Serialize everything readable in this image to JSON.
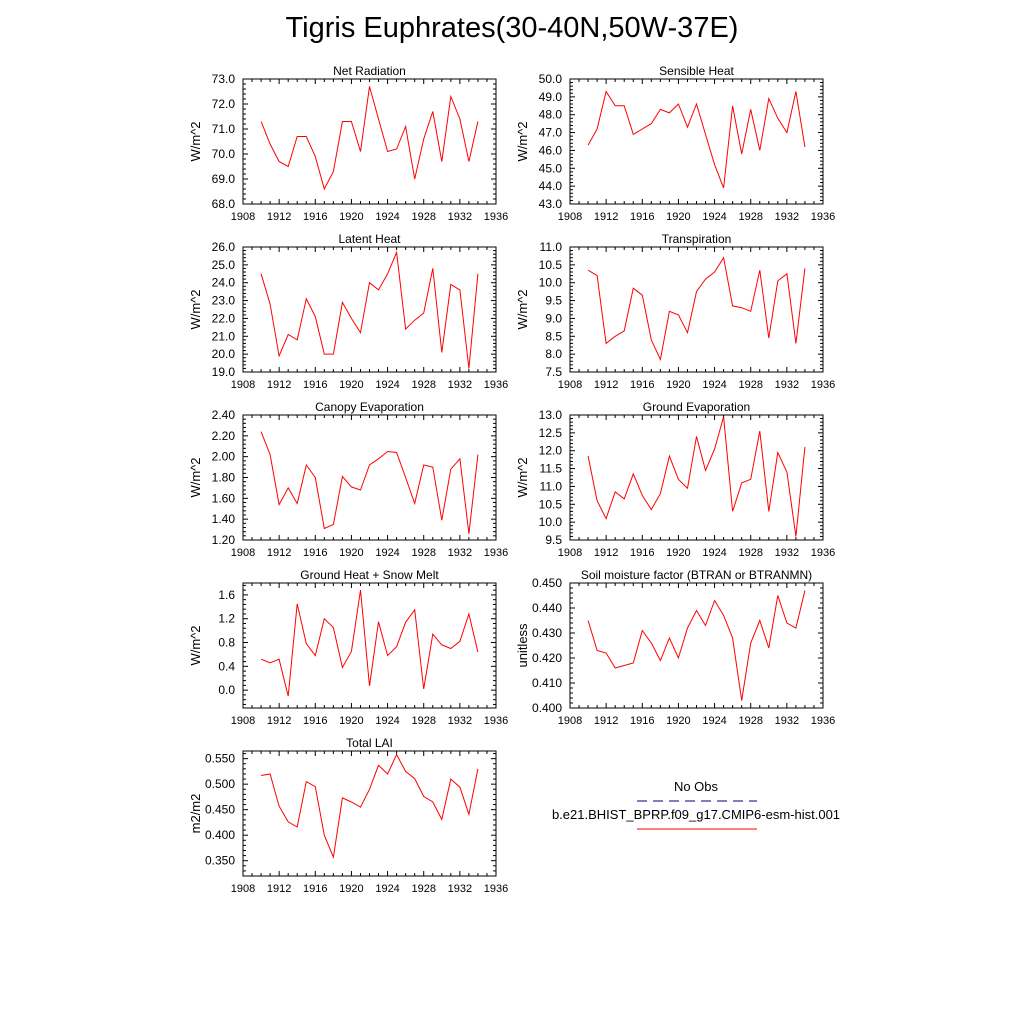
{
  "title": "Tigris Euphrates(30-40N,50W-37E)",
  "colors": {
    "model": "#ff0000",
    "obs": "#000080",
    "axis": "#000000"
  },
  "legend": {
    "obs_label": "No Obs",
    "model_label": "b.e21.BHIST_BPRP.f09_g17.CMIP6-esm-hist.001"
  },
  "chart_data": [
    {
      "type": "line",
      "title": "Net Radiation",
      "ylabel": "W/m^2",
      "xlim": [
        1908,
        1936
      ],
      "ylim": [
        68.0,
        73.0
      ],
      "xticks": [
        "1908",
        "1912",
        "1916",
        "1920",
        "1924",
        "1928",
        "1932",
        "1936"
      ],
      "yticks": [
        "68.0",
        "69.0",
        "70.0",
        "71.0",
        "72.0",
        "73.0"
      ],
      "x": [
        1910,
        1911,
        1912,
        1913,
        1914,
        1915,
        1916,
        1917,
        1918,
        1919,
        1920,
        1921,
        1922,
        1923,
        1924,
        1925,
        1926,
        1927,
        1928,
        1929,
        1930,
        1931,
        1932,
        1933,
        1934
      ],
      "values": [
        71.3,
        70.4,
        69.7,
        69.5,
        70.7,
        70.7,
        69.9,
        68.6,
        69.3,
        71.3,
        71.3,
        70.1,
        72.7,
        71.4,
        70.1,
        70.2,
        71.1,
        69.0,
        70.6,
        71.7,
        69.7,
        72.3,
        71.4,
        69.7,
        71.3
      ]
    },
    {
      "type": "line",
      "title": "Sensible Heat",
      "ylabel": "W/m^2",
      "xlim": [
        1908,
        1936
      ],
      "ylim": [
        43.0,
        50.0
      ],
      "xticks": [
        "1908",
        "1912",
        "1916",
        "1920",
        "1924",
        "1928",
        "1932",
        "1936"
      ],
      "yticks": [
        "43.0",
        "44.0",
        "45.0",
        "46.0",
        "47.0",
        "48.0",
        "49.0",
        "50.0"
      ],
      "x": [
        1910,
        1911,
        1912,
        1913,
        1914,
        1915,
        1916,
        1917,
        1918,
        1919,
        1920,
        1921,
        1922,
        1923,
        1924,
        1925,
        1926,
        1927,
        1928,
        1929,
        1930,
        1931,
        1932,
        1933,
        1934
      ],
      "values": [
        46.3,
        47.2,
        49.3,
        48.5,
        48.5,
        46.9,
        47.2,
        47.5,
        48.3,
        48.1,
        48.6,
        47.3,
        48.6,
        46.9,
        45.2,
        43.9,
        48.5,
        45.8,
        48.3,
        46.0,
        48.9,
        47.8,
        47.0,
        49.3,
        46.2
      ]
    },
    {
      "type": "line",
      "title": "Latent Heat",
      "ylabel": "W/m^2",
      "xlim": [
        1908,
        1936
      ],
      "ylim": [
        19.0,
        26.0
      ],
      "xticks": [
        "1908",
        "1912",
        "1916",
        "1920",
        "1924",
        "1928",
        "1932",
        "1936"
      ],
      "yticks": [
        "19.0",
        "20.0",
        "21.0",
        "22.0",
        "23.0",
        "24.0",
        "25.0",
        "26.0"
      ],
      "x": [
        1910,
        1911,
        1912,
        1913,
        1914,
        1915,
        1916,
        1917,
        1918,
        1919,
        1920,
        1921,
        1922,
        1923,
        1924,
        1925,
        1926,
        1927,
        1928,
        1929,
        1930,
        1931,
        1932,
        1933,
        1934
      ],
      "values": [
        24.5,
        22.8,
        19.9,
        21.1,
        20.8,
        23.1,
        22.1,
        20.0,
        20.0,
        22.9,
        22.0,
        21.2,
        24.0,
        23.6,
        24.5,
        25.7,
        21.4,
        21.9,
        22.3,
        24.8,
        20.1,
        23.9,
        23.6,
        19.2,
        24.5
      ]
    },
    {
      "type": "line",
      "title": "Transpiration",
      "ylabel": "W/m^2",
      "xlim": [
        1908,
        1936
      ],
      "ylim": [
        7.5,
        11.0
      ],
      "xticks": [
        "1908",
        "1912",
        "1916",
        "1920",
        "1924",
        "1928",
        "1932",
        "1936"
      ],
      "yticks": [
        "7.5",
        "8.0",
        "8.5",
        "9.0",
        "9.5",
        "10.0",
        "10.5",
        "11.0"
      ],
      "x": [
        1910,
        1911,
        1912,
        1913,
        1914,
        1915,
        1916,
        1917,
        1918,
        1919,
        1920,
        1921,
        1922,
        1923,
        1924,
        1925,
        1926,
        1927,
        1928,
        1929,
        1930,
        1931,
        1932,
        1933,
        1934
      ],
      "values": [
        10.35,
        10.2,
        8.3,
        8.5,
        8.65,
        9.85,
        9.65,
        8.4,
        7.85,
        9.2,
        9.1,
        8.6,
        9.75,
        10.1,
        10.3,
        10.7,
        9.35,
        9.3,
        9.2,
        10.35,
        8.45,
        10.05,
        10.25,
        8.3,
        10.4
      ]
    },
    {
      "type": "line",
      "title": "Canopy Evaporation",
      "ylabel": "W/m^2",
      "xlim": [
        1908,
        1936
      ],
      "ylim": [
        1.2,
        2.4
      ],
      "xticks": [
        "1908",
        "1912",
        "1916",
        "1920",
        "1924",
        "1928",
        "1932",
        "1936"
      ],
      "yticks": [
        "1.20",
        "1.40",
        "1.60",
        "1.80",
        "2.00",
        "2.20",
        "2.40"
      ],
      "x": [
        1910,
        1911,
        1912,
        1913,
        1914,
        1915,
        1916,
        1917,
        1918,
        1919,
        1920,
        1921,
        1922,
        1923,
        1924,
        1925,
        1926,
        1927,
        1928,
        1929,
        1930,
        1931,
        1932,
        1933,
        1934
      ],
      "values": [
        2.24,
        2.02,
        1.54,
        1.7,
        1.55,
        1.92,
        1.8,
        1.31,
        1.35,
        1.81,
        1.71,
        1.68,
        1.92,
        1.98,
        2.05,
        2.04,
        1.8,
        1.55,
        1.92,
        1.9,
        1.39,
        1.88,
        1.98,
        1.26,
        2.02
      ]
    },
    {
      "type": "line",
      "title": "Ground Evaporation",
      "ylabel": "W/m^2",
      "xlim": [
        1908,
        1936
      ],
      "ylim": [
        9.5,
        13.0
      ],
      "xticks": [
        "1908",
        "1912",
        "1916",
        "1920",
        "1924",
        "1928",
        "1932",
        "1936"
      ],
      "yticks": [
        "9.5",
        "10.0",
        "10.5",
        "11.0",
        "11.5",
        "12.0",
        "12.5",
        "13.0"
      ],
      "x": [
        1910,
        1911,
        1912,
        1913,
        1914,
        1915,
        1916,
        1917,
        1918,
        1919,
        1920,
        1921,
        1922,
        1923,
        1924,
        1925,
        1926,
        1927,
        1928,
        1929,
        1930,
        1931,
        1932,
        1933,
        1934
      ],
      "values": [
        11.85,
        10.6,
        10.1,
        10.85,
        10.65,
        11.35,
        10.75,
        10.35,
        10.8,
        11.85,
        11.2,
        10.95,
        12.4,
        11.45,
        12.05,
        12.95,
        10.3,
        11.1,
        11.2,
        12.55,
        10.3,
        11.95,
        11.4,
        9.6,
        12.1
      ]
    },
    {
      "type": "line",
      "title": "Ground Heat + Snow Melt",
      "ylabel": "W/m^2",
      "xlim": [
        1908,
        1936
      ],
      "ylim": [
        -0.3,
        1.8
      ],
      "xticks": [
        "1908",
        "1912",
        "1916",
        "1920",
        "1924",
        "1928",
        "1932",
        "1936"
      ],
      "yticks": [
        "0.0",
        "0.4",
        "0.8",
        "1.2",
        "1.6"
      ],
      "ytick_values": [
        0.0,
        0.4,
        0.8,
        1.2,
        1.6
      ],
      "x": [
        1910,
        1911,
        1912,
        1913,
        1914,
        1915,
        1916,
        1917,
        1918,
        1919,
        1920,
        1921,
        1922,
        1923,
        1924,
        1925,
        1926,
        1927,
        1928,
        1929,
        1930,
        1931,
        1932,
        1933,
        1934
      ],
      "values": [
        0.52,
        0.46,
        0.52,
        -0.1,
        1.45,
        0.78,
        0.58,
        1.2,
        1.05,
        0.38,
        0.65,
        1.68,
        0.07,
        1.15,
        0.58,
        0.73,
        1.14,
        1.35,
        0.02,
        0.94,
        0.76,
        0.7,
        0.82,
        1.28,
        0.64
      ]
    },
    {
      "type": "line",
      "title": "Soil moisture factor (BTRAN or BTRANMN)",
      "ylabel": "unitless",
      "xlim": [
        1908,
        1936
      ],
      "ylim": [
        0.4,
        0.45
      ],
      "xticks": [
        "1908",
        "1912",
        "1916",
        "1920",
        "1924",
        "1928",
        "1932",
        "1936"
      ],
      "yticks": [
        "0.400",
        "0.410",
        "0.420",
        "0.430",
        "0.440",
        "0.450"
      ],
      "x": [
        1910,
        1911,
        1912,
        1913,
        1914,
        1915,
        1916,
        1917,
        1918,
        1919,
        1920,
        1921,
        1922,
        1923,
        1924,
        1925,
        1926,
        1927,
        1928,
        1929,
        1930,
        1931,
        1932,
        1933,
        1934
      ],
      "values": [
        0.435,
        0.423,
        0.422,
        0.416,
        0.417,
        0.418,
        0.431,
        0.426,
        0.419,
        0.428,
        0.42,
        0.432,
        0.439,
        0.433,
        0.443,
        0.437,
        0.428,
        0.403,
        0.426,
        0.435,
        0.424,
        0.445,
        0.434,
        0.432,
        0.447
      ]
    },
    {
      "type": "line",
      "title": "Total LAI",
      "ylabel": "m2/m2",
      "xlim": [
        1908,
        1936
      ],
      "ylim": [
        0.32,
        0.565
      ],
      "xticks": [
        "1908",
        "1912",
        "1916",
        "1920",
        "1924",
        "1928",
        "1932",
        "1936"
      ],
      "yticks": [
        "0.350",
        "0.400",
        "0.450",
        "0.500",
        "0.550"
      ],
      "ytick_values": [
        0.35,
        0.4,
        0.45,
        0.5,
        0.55
      ],
      "x": [
        1910,
        1911,
        1912,
        1913,
        1914,
        1915,
        1916,
        1917,
        1918,
        1919,
        1920,
        1921,
        1922,
        1923,
        1924,
        1925,
        1926,
        1927,
        1928,
        1929,
        1930,
        1931,
        1932,
        1933,
        1934
      ],
      "values": [
        0.517,
        0.52,
        0.457,
        0.426,
        0.416,
        0.505,
        0.495,
        0.4,
        0.357,
        0.473,
        0.465,
        0.455,
        0.49,
        0.537,
        0.52,
        0.558,
        0.525,
        0.511,
        0.476,
        0.465,
        0.431,
        0.51,
        0.494,
        0.441,
        0.53
      ]
    }
  ]
}
